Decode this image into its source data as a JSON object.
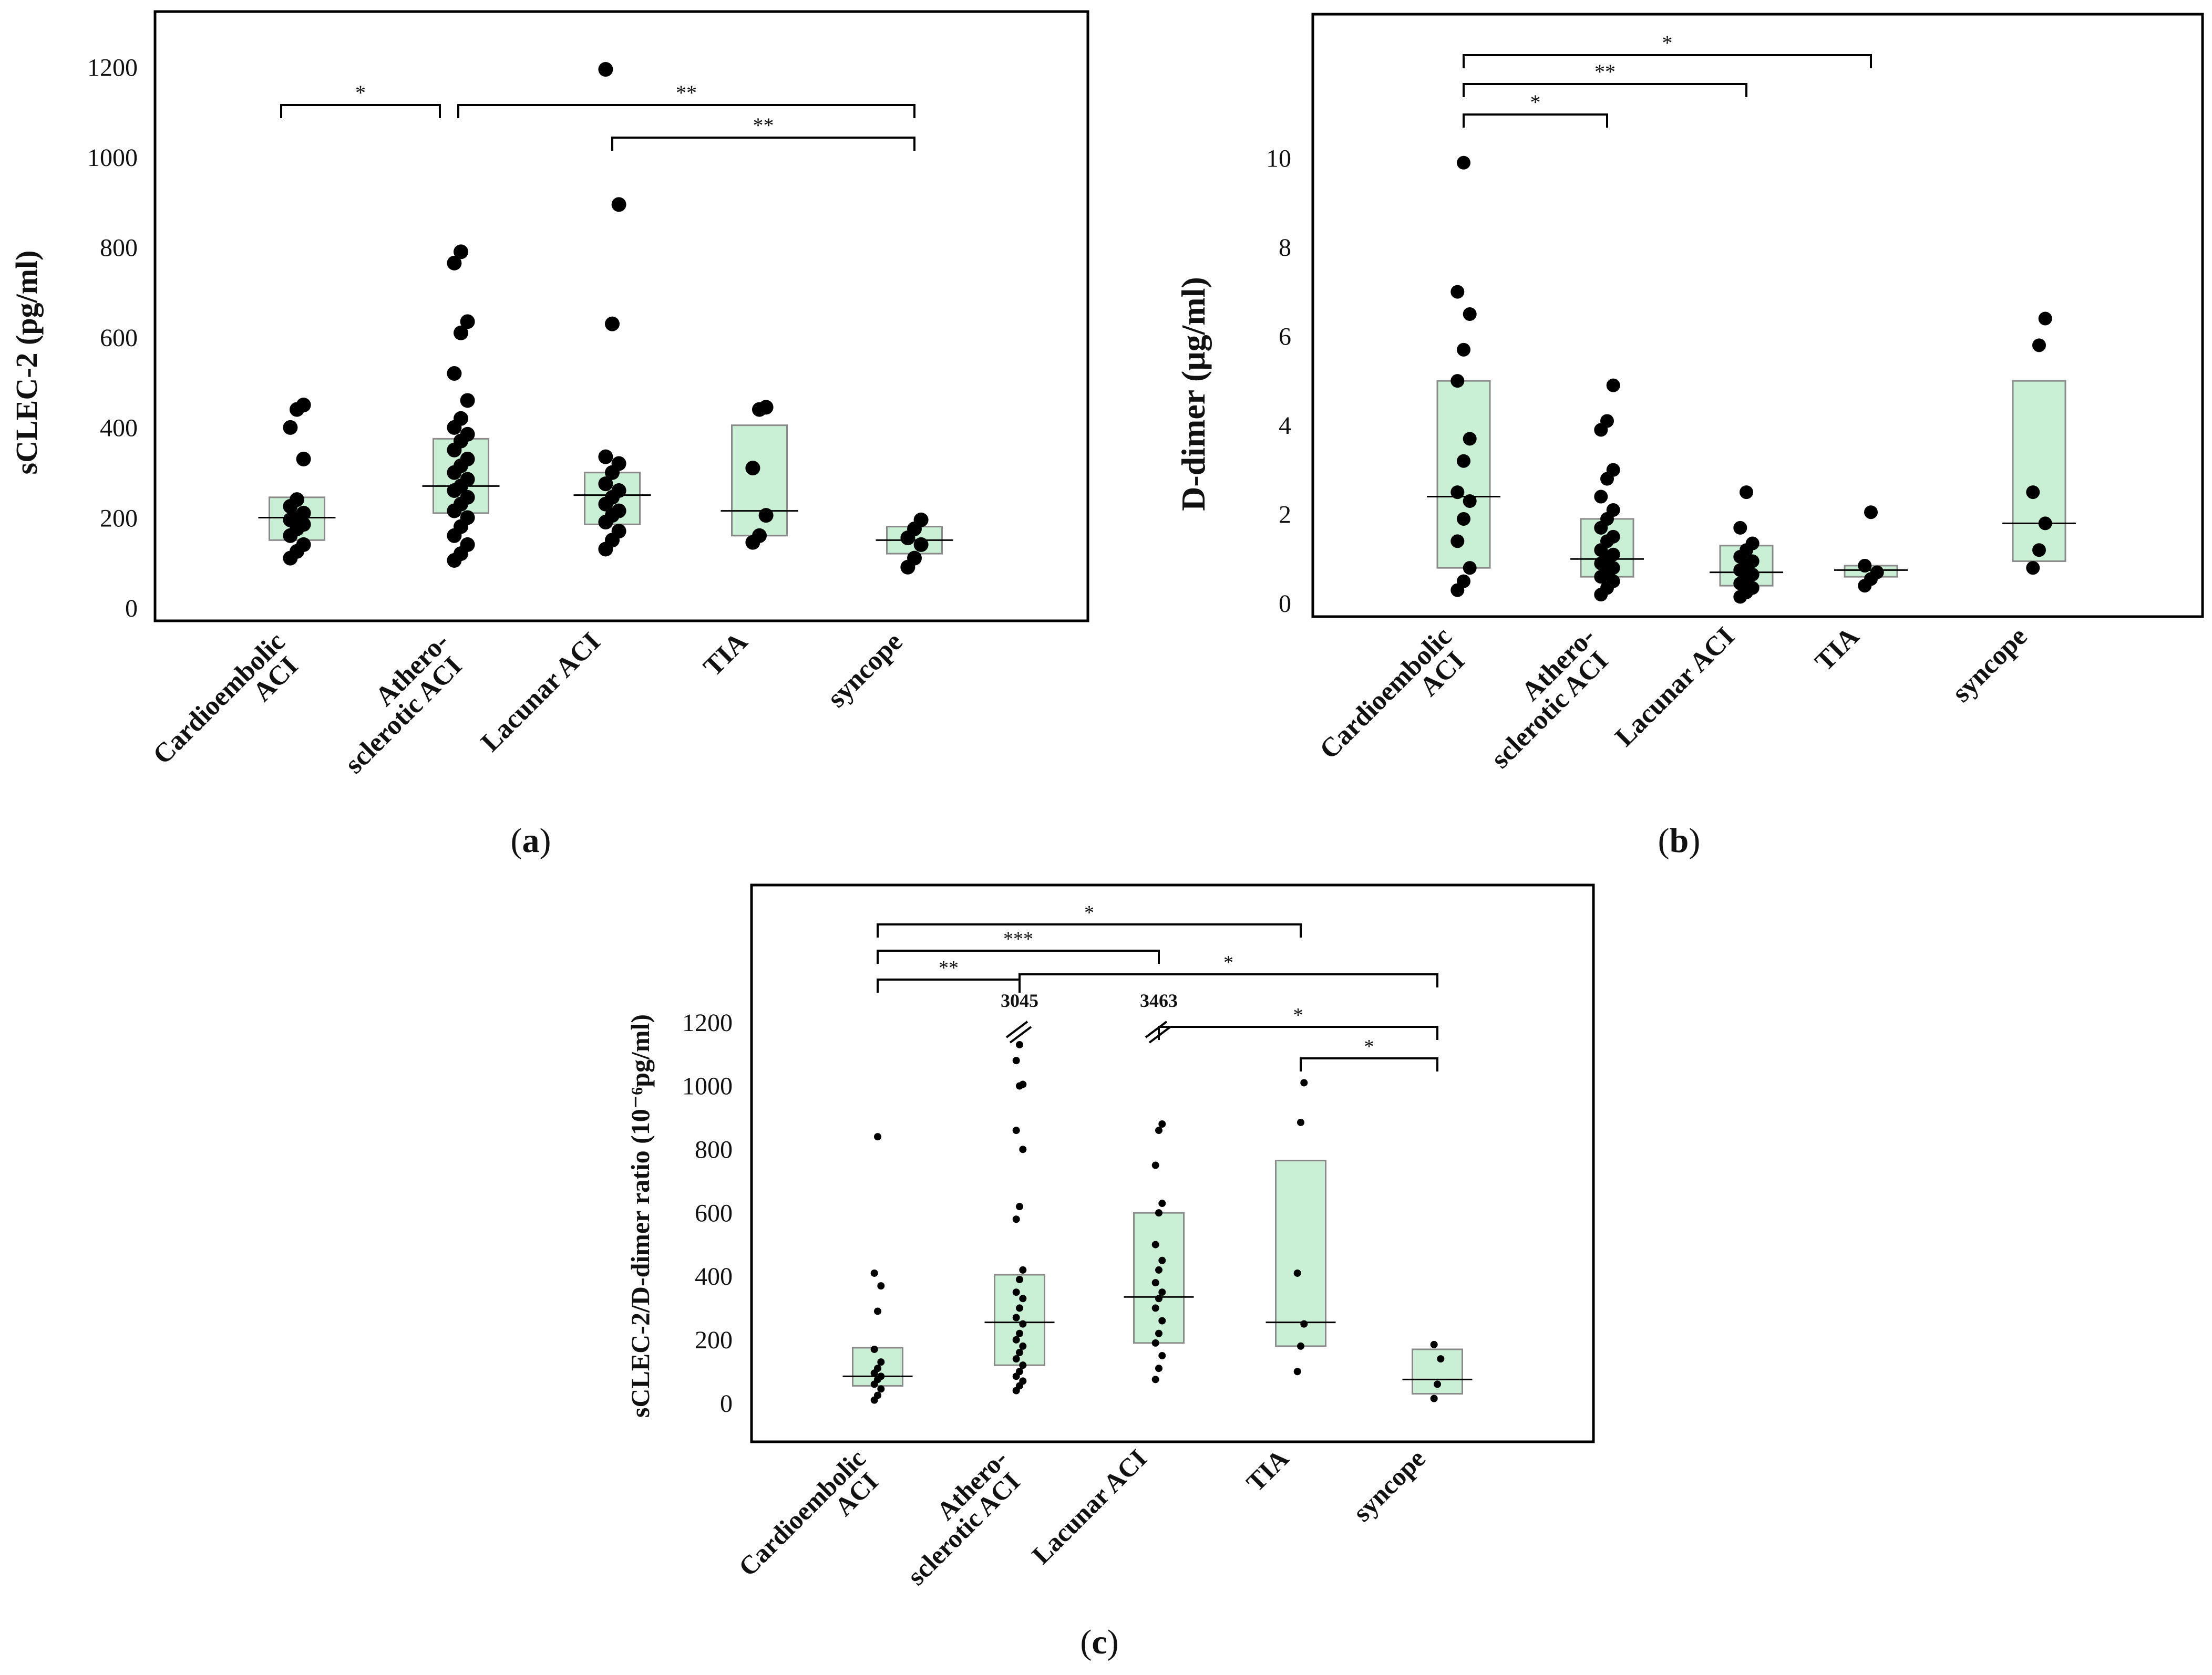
{
  "colors": {
    "box_fill": "#c9f0d4",
    "box_stroke": "#8a8a8a",
    "point": "#000000",
    "axis": "#000000"
  },
  "chart_data": [
    {
      "panel": "(a)",
      "caption": {
        "open": "(",
        "letter": "a",
        "close": ")"
      },
      "type": "scatter",
      "title": "",
      "xlabel": "",
      "ylabel": "sCLEC-2 (pg/ml)",
      "ylim": [
        0,
        1300
      ],
      "yticks": [
        0,
        200,
        400,
        600,
        800,
        1000,
        1200
      ],
      "grid": false,
      "categories": [
        {
          "lines": [
            "Cardioembolic",
            "ACI"
          ],
          "values": [
            110,
            125,
            140,
            160,
            175,
            185,
            195,
            200,
            210,
            225,
            240,
            330,
            400,
            440,
            450
          ],
          "box": {
            "q1": 150,
            "median": 200,
            "q3": 245
          }
        },
        {
          "lines": [
            "Athero-",
            "sclerotic ACI"
          ],
          "values": [
            105,
            120,
            140,
            160,
            180,
            200,
            215,
            230,
            245,
            260,
            270,
            285,
            300,
            315,
            330,
            350,
            370,
            385,
            400,
            420,
            460,
            520,
            610,
            635,
            765,
            790
          ],
          "box": {
            "q1": 210,
            "median": 270,
            "q3": 375
          }
        },
        {
          "lines": [
            "Lacunar ACI"
          ],
          "values": [
            130,
            150,
            170,
            190,
            205,
            215,
            230,
            245,
            260,
            275,
            300,
            320,
            335,
            630,
            895,
            1195
          ],
          "box": {
            "q1": 185,
            "median": 250,
            "q3": 300
          }
        },
        {
          "lines": [
            "TIA"
          ],
          "values": [
            145,
            160,
            205,
            310,
            440,
            445
          ],
          "box": {
            "q1": 160,
            "median": 215,
            "q3": 405
          }
        },
        {
          "lines": [
            "syncope"
          ],
          "values": [
            90,
            110,
            140,
            155,
            175,
            195
          ],
          "box": {
            "q1": 120,
            "median": 150,
            "q3": 180
          }
        }
      ],
      "significance": [
        {
          "from": 0,
          "to": 1,
          "label": "*"
        },
        {
          "from": 1,
          "to": 4,
          "label": "**"
        },
        {
          "from": 2,
          "to": 4,
          "label": "**"
        }
      ]
    },
    {
      "panel": "(b)",
      "caption": {
        "open": "(",
        "letter": "b",
        "close": ")"
      },
      "type": "scatter",
      "title": "",
      "xlabel": "",
      "ylabel": "D-dimer (μg/ml)",
      "ylim": [
        0,
        13
      ],
      "yticks": [
        0,
        2,
        4,
        6,
        8,
        10
      ],
      "grid": false,
      "categories": [
        {
          "lines": [
            "Cardioembolic",
            "ACI"
          ],
          "values": [
            0.3,
            0.5,
            0.8,
            1.4,
            1.9,
            2.3,
            2.5,
            3.2,
            3.7,
            5.0,
            5.7,
            6.5,
            7.0,
            9.9
          ],
          "box": {
            "q1": 0.8,
            "median": 2.4,
            "q3": 5.0
          }
        },
        {
          "lines": [
            "Athero-",
            "sclerotic ACI"
          ],
          "values": [
            0.2,
            0.35,
            0.5,
            0.6,
            0.7,
            0.8,
            0.9,
            1.0,
            1.1,
            1.2,
            1.4,
            1.5,
            1.7,
            1.9,
            2.1,
            2.4,
            2.8,
            3.0,
            3.9,
            4.1,
            4.9
          ],
          "box": {
            "q1": 0.6,
            "median": 1.0,
            "q3": 1.9
          }
        },
        {
          "lines": [
            "Lacunar ACI"
          ],
          "values": [
            0.15,
            0.25,
            0.35,
            0.45,
            0.55,
            0.65,
            0.75,
            0.85,
            0.95,
            1.05,
            1.2,
            1.35,
            1.7,
            2.5
          ],
          "box": {
            "q1": 0.4,
            "median": 0.7,
            "q3": 1.3
          }
        },
        {
          "lines": [
            "TIA"
          ],
          "values": [
            0.4,
            0.55,
            0.7,
            0.85,
            2.05
          ],
          "box": {
            "q1": 0.6,
            "median": 0.75,
            "q3": 0.85
          }
        },
        {
          "lines": [
            "syncope"
          ],
          "values": [
            0.8,
            1.2,
            1.8,
            2.5,
            5.8,
            6.4
          ],
          "box": {
            "q1": 0.95,
            "median": 1.8,
            "q3": 5.0
          }
        }
      ],
      "significance": [
        {
          "from": 0,
          "to": 1,
          "label": "*"
        },
        {
          "from": 0,
          "to": 2,
          "label": "**"
        },
        {
          "from": 0,
          "to": 3,
          "label": "*"
        }
      ]
    },
    {
      "panel": "(c)",
      "caption": {
        "open": "(",
        "letter": "c",
        "close": ")"
      },
      "type": "scatter",
      "title": "",
      "xlabel": "",
      "ylabel": "sCLEC-2/D-dimer ratio (10⁻⁶pg/ml)",
      "ylim": [
        -80,
        1600
      ],
      "yticks": [
        0,
        200,
        400,
        600,
        800,
        1000,
        1200
      ],
      "grid": false,
      "categories": [
        {
          "lines": [
            "Cardioembolic",
            "ACI"
          ],
          "values": [
            10,
            25,
            45,
            60,
            75,
            85,
            95,
            110,
            130,
            170,
            290,
            370,
            410,
            840
          ],
          "box": {
            "q1": 55,
            "median": 85,
            "q3": 175
          }
        },
        {
          "lines": [
            "Athero-",
            "sclerotic ACI"
          ],
          "values": [
            40,
            55,
            70,
            85,
            100,
            120,
            140,
            160,
            180,
            200,
            220,
            250,
            270,
            300,
            330,
            350,
            390,
            420,
            580,
            620,
            800,
            860,
            1000,
            1005,
            1080,
            1130
          ],
          "box": {
            "q1": 120,
            "median": 255,
            "q3": 405
          }
        },
        {
          "lines": [
            "Lacunar ACI"
          ],
          "values": [
            75,
            110,
            150,
            190,
            220,
            260,
            300,
            330,
            350,
            380,
            420,
            450,
            500,
            600,
            630,
            750,
            860,
            880
          ],
          "box": {
            "q1": 190,
            "median": 335,
            "q3": 600
          }
        },
        {
          "lines": [
            "TIA"
          ],
          "values": [
            100,
            180,
            250,
            410,
            885,
            1010
          ],
          "box": {
            "q1": 180,
            "median": 255,
            "q3": 765
          }
        },
        {
          "lines": [
            "syncope"
          ],
          "values": [
            15,
            60,
            140,
            185
          ],
          "box": {
            "q1": 30,
            "median": 75,
            "q3": 170
          }
        }
      ],
      "breaks": [
        {
          "category": 1,
          "label": "3045"
        },
        {
          "category": 2,
          "label": "3463"
        }
      ],
      "significance": [
        {
          "from": 0,
          "to": 1,
          "label": "**"
        },
        {
          "from": 0,
          "to": 2,
          "label": "***"
        },
        {
          "from": 0,
          "to": 3,
          "label": "*"
        },
        {
          "from": 1,
          "to": 4,
          "label": "*"
        },
        {
          "from": 2,
          "to": 4,
          "label": "*"
        },
        {
          "from": 3,
          "to": 4,
          "label": "*"
        }
      ]
    }
  ]
}
